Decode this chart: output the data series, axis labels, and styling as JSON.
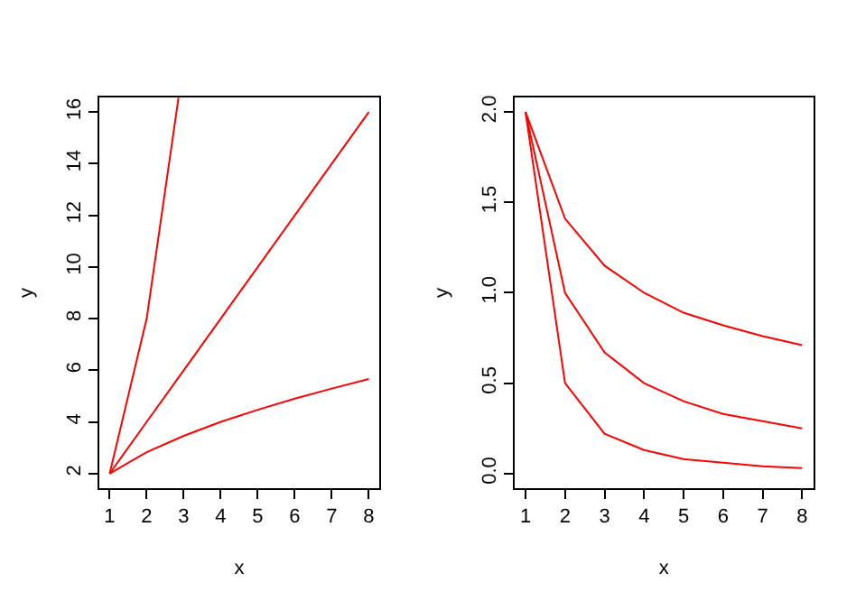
{
  "chart_data": [
    {
      "type": "line",
      "xlabel": "x",
      "ylabel": "y",
      "x": [
        1,
        2,
        3,
        4,
        5,
        6,
        7,
        8
      ],
      "xlim": [
        0.72,
        8.28
      ],
      "xticks": [
        1,
        2,
        3,
        4,
        5,
        6,
        7,
        8
      ],
      "ylim": [
        1.44,
        16.56
      ],
      "yticks": [
        2,
        4,
        6,
        8,
        10,
        12,
        14,
        16
      ],
      "marker": "none",
      "line_style": "solid",
      "series": [
        {
          "color": "#ff0000",
          "x": [
            1,
            2,
            2.86
          ],
          "values": [
            2,
            8,
            16.56
          ]
        },
        {
          "color": "#ff0000",
          "values": [
            2,
            4,
            6,
            8,
            10,
            12,
            14,
            16
          ]
        },
        {
          "color": "#ff0000",
          "values": [
            2,
            2.83,
            3.46,
            4,
            4.47,
            4.9,
            5.29,
            5.66
          ]
        }
      ]
    },
    {
      "type": "line",
      "xlabel": "x",
      "ylabel": "y",
      "x": [
        1,
        2,
        3,
        4,
        5,
        6,
        7,
        8
      ],
      "xlim": [
        0.72,
        8.28
      ],
      "xticks": [
        1,
        2,
        3,
        4,
        5,
        6,
        7,
        8
      ],
      "ylim": [
        -0.08,
        2.08
      ],
      "yticks": [
        {
          "value": 0,
          "label": "0.0"
        },
        0.5,
        {
          "value": 1,
          "label": "1.0"
        },
        1.5,
        {
          "value": 2,
          "label": "2.0"
        }
      ],
      "marker": "none",
      "line_style": "solid",
      "series": [
        {
          "color": "#ff0000",
          "values": [
            2,
            1.41,
            1.15,
            1,
            0.89,
            0.82,
            0.76,
            0.71
          ]
        },
        {
          "color": "#ff0000",
          "values": [
            2,
            1,
            0.67,
            0.5,
            0.4,
            0.33,
            0.29,
            0.25
          ]
        },
        {
          "color": "#ff0000",
          "values": [
            2,
            0.5,
            0.22,
            0.13,
            0.08,
            0.06,
            0.04,
            0.03
          ]
        }
      ]
    }
  ]
}
